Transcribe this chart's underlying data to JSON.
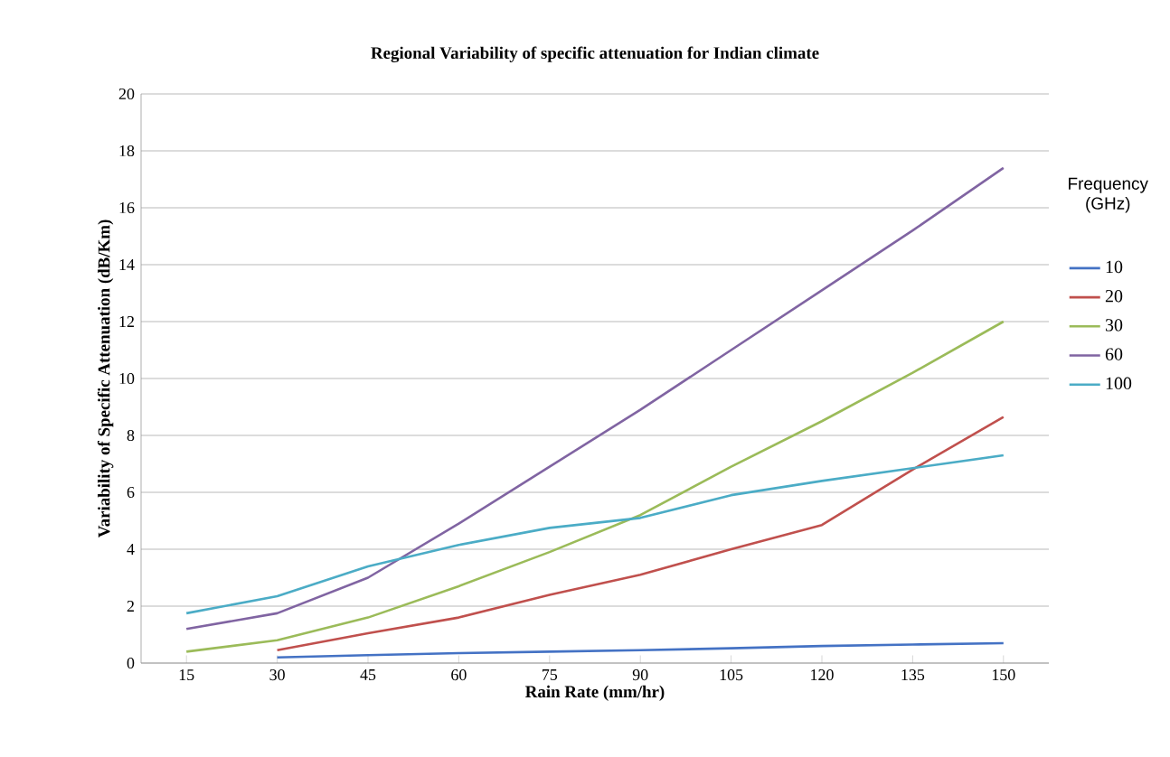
{
  "chart_data": {
    "type": "line",
    "title": "Regional Variability of specific attenuation  for Indian climate",
    "xlabel": "Rain Rate (mm/hr)",
    "ylabel": "Variability of Specific Attenuation (dB/Km)",
    "legend_title": "Frequency (GHz)",
    "categories": [
      "15",
      "30",
      "45",
      "60",
      "75",
      "90",
      "105",
      "120",
      "135",
      "150"
    ],
    "series": [
      {
        "name": "10",
        "color": "#4472c4",
        "values": [
          null,
          0.2,
          0.28,
          0.35,
          0.4,
          0.45,
          0.52,
          0.6,
          0.65,
          0.7
        ]
      },
      {
        "name": "20",
        "color": "#c0504d",
        "values": [
          null,
          0.45,
          1.05,
          1.6,
          2.4,
          3.1,
          4.0,
          4.85,
          6.8,
          8.65
        ]
      },
      {
        "name": "30",
        "color": "#9bbb59",
        "values": [
          0.4,
          0.8,
          1.6,
          2.7,
          3.9,
          5.2,
          6.9,
          8.5,
          10.2,
          12.0
        ]
      },
      {
        "name": "60",
        "color": "#8064a2",
        "values": [
          1.2,
          1.75,
          3.0,
          4.9,
          6.9,
          8.9,
          11.0,
          13.1,
          15.2,
          17.4
        ]
      },
      {
        "name": "100",
        "color": "#4bacc6",
        "values": [
          1.75,
          2.35,
          3.4,
          4.15,
          4.75,
          5.1,
          5.9,
          6.4,
          6.85,
          7.3
        ]
      }
    ],
    "ylim": [
      0,
      20
    ],
    "yticks": [
      0,
      2,
      4,
      6,
      8,
      10,
      12,
      14,
      16,
      18,
      20
    ],
    "grid": "y",
    "legend": "right",
    "marker": "none",
    "line_style": "solid"
  }
}
